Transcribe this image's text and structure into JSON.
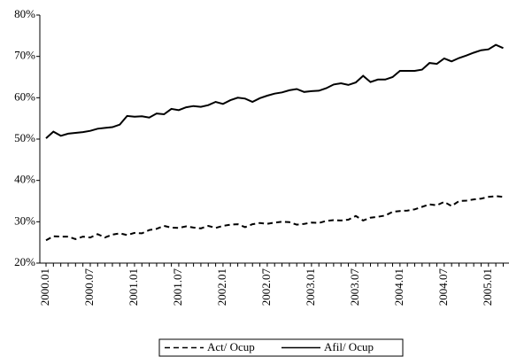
{
  "chart_data": {
    "type": "line",
    "categories": [
      "2000.01",
      null,
      null,
      null,
      null,
      null,
      "2000.07",
      null,
      null,
      null,
      null,
      null,
      "2001.01",
      null,
      null,
      null,
      null,
      null,
      "2001.07",
      null,
      null,
      null,
      null,
      null,
      "2002.01",
      null,
      null,
      null,
      null,
      null,
      "2002.07",
      null,
      null,
      null,
      null,
      null,
      "2003.01",
      null,
      null,
      null,
      null,
      null,
      "2003.07",
      null,
      null,
      null,
      null,
      null,
      "2004.01",
      null,
      null,
      null,
      null,
      null,
      "2004.07",
      null,
      null,
      null,
      null,
      null,
      "2005.01",
      null,
      null
    ],
    "series": [
      {
        "name": "Act/ Ocup",
        "color": "#000000",
        "style": "dashed",
        "values": [
          25.5,
          26.5,
          26.4,
          26.4,
          25.8,
          26.4,
          26.2,
          27.0,
          26.2,
          26.9,
          27.2,
          26.8,
          27.3,
          27.2,
          28.0,
          28.3,
          29.0,
          28.6,
          28.5,
          28.9,
          28.6,
          28.4,
          29.0,
          28.5,
          29.0,
          29.3,
          29.4,
          28.7,
          29.4,
          29.7,
          29.5,
          29.8,
          30.0,
          29.9,
          29.3,
          29.5,
          29.8,
          29.7,
          30.2,
          30.4,
          30.3,
          30.5,
          31.4,
          30.3,
          31.0,
          31.2,
          31.5,
          32.4,
          32.6,
          32.7,
          33.0,
          33.6,
          34.2,
          34.0,
          34.8,
          33.8,
          35.0,
          35.1,
          35.4,
          35.6,
          36.0,
          36.2,
          36.0
        ]
      },
      {
        "name": "Afil/ Ocup",
        "color": "#000000",
        "style": "solid",
        "values": [
          50.2,
          51.8,
          50.8,
          51.3,
          51.5,
          51.7,
          52.0,
          52.5,
          52.7,
          52.9,
          53.5,
          55.6,
          55.4,
          55.5,
          55.2,
          56.2,
          56.0,
          57.3,
          57.0,
          57.7,
          58.0,
          57.8,
          58.2,
          59.0,
          58.5,
          59.4,
          60.0,
          59.8,
          59.0,
          59.9,
          60.5,
          61.0,
          61.3,
          61.8,
          62.1,
          61.4,
          61.6,
          61.7,
          62.3,
          63.2,
          63.5,
          63.1,
          63.7,
          65.3,
          63.8,
          64.4,
          64.4,
          65.0,
          66.5,
          66.5,
          66.5,
          66.8,
          68.4,
          68.2,
          69.5,
          68.8,
          69.6,
          70.2,
          70.9,
          71.5,
          71.7,
          72.8,
          72.0
        ]
      }
    ],
    "ylim": [
      20,
      80
    ],
    "yticks": [
      {
        "value": 20,
        "label": "20%"
      },
      {
        "value": 30,
        "label": "30%"
      },
      {
        "value": 40,
        "label": "40%"
      },
      {
        "value": 50,
        "label": "50%"
      },
      {
        "value": 60,
        "label": "60%"
      },
      {
        "value": 70,
        "label": "70%"
      },
      {
        "value": 80,
        "label": "80%"
      }
    ],
    "grid": false,
    "legend": "bottom"
  }
}
